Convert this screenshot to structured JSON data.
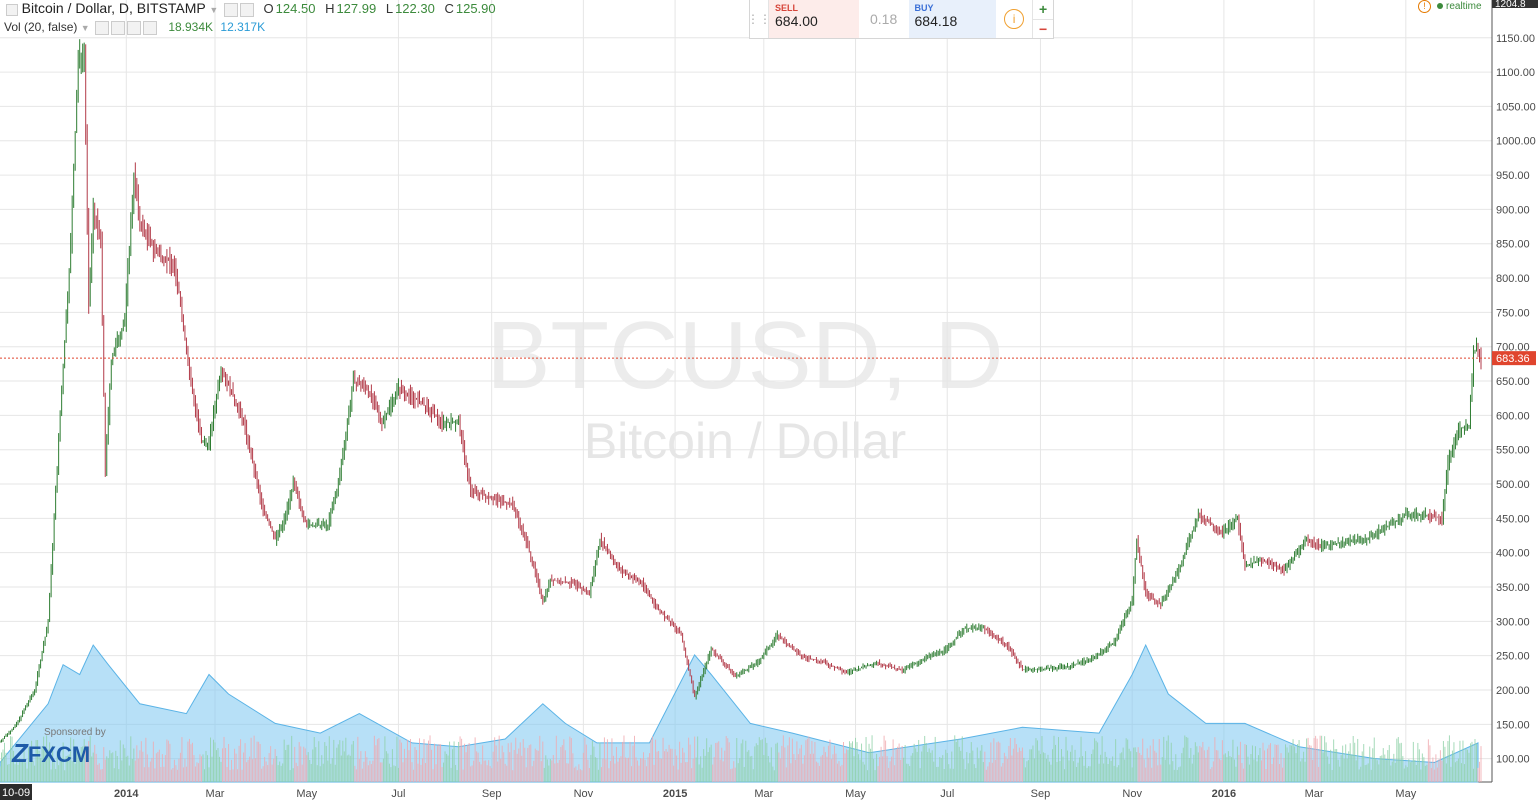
{
  "chart_data": {
    "type": "candlestick",
    "symbol_title": "Bitcoin / Dollar, D, BITSTAMP",
    "ohlc_label": {
      "O": "124.50",
      "H": "127.99",
      "L": "122.30",
      "C": "125.90"
    },
    "watermark": {
      "line1": "BTCUSD, D",
      "line2": "Bitcoin / Dollar"
    },
    "volume_indicator": {
      "label": "Vol (20, false)",
      "value1": "18.934K",
      "value2": "12.317K"
    },
    "y_axis": {
      "ticks": [
        "1150.00",
        "1100.00",
        "1050.00",
        "1000.00",
        "950.00",
        "900.00",
        "850.00",
        "800.00",
        "750.00",
        "700.00",
        "650.00",
        "600.00",
        "550.00",
        "500.00",
        "450.00",
        "400.00",
        "350.00",
        "300.00",
        "250.00",
        "200.00",
        "150.00",
        "100.00"
      ],
      "range": [
        66,
        1205
      ]
    },
    "x_axis": {
      "range": [
        "2013-10-09",
        "2016-06-20"
      ],
      "ticks": [
        {
          "date": "2014-01-01",
          "label": "2014",
          "bold": true
        },
        {
          "date": "2014-03-01",
          "label": "Mar"
        },
        {
          "date": "2014-05-01",
          "label": "May"
        },
        {
          "date": "2014-07-01",
          "label": "Jul"
        },
        {
          "date": "2014-09-01",
          "label": "Sep"
        },
        {
          "date": "2014-11-01",
          "label": "Nov"
        },
        {
          "date": "2015-01-01",
          "label": "2015",
          "bold": true
        },
        {
          "date": "2015-03-01",
          "label": "Mar"
        },
        {
          "date": "2015-05-01",
          "label": "May"
        },
        {
          "date": "2015-07-01",
          "label": "Jul"
        },
        {
          "date": "2015-09-01",
          "label": "Sep"
        },
        {
          "date": "2015-11-01",
          "label": "Nov"
        },
        {
          "date": "2016-01-01",
          "label": "2016",
          "bold": true
        },
        {
          "date": "2016-03-01",
          "label": "Mar"
        },
        {
          "date": "2016-05-01",
          "label": "May"
        }
      ],
      "start_label": "10-09"
    },
    "last_price": {
      "value": 683.36,
      "label": "683.36"
    },
    "top_price_label": "1204.8",
    "price_path": [
      [
        "2013-10-09",
        125
      ],
      [
        "2013-10-20",
        150
      ],
      [
        "2013-11-01",
        200
      ],
      [
        "2013-11-10",
        300
      ],
      [
        "2013-11-18",
        600
      ],
      [
        "2013-11-25",
        850
      ],
      [
        "2013-11-30",
        1120
      ],
      [
        "2013-12-04",
        1130
      ],
      [
        "2013-12-07",
        760
      ],
      [
        "2013-12-10",
        900
      ],
      [
        "2013-12-15",
        850
      ],
      [
        "2013-12-18",
        520
      ],
      [
        "2013-12-22",
        680
      ],
      [
        "2013-12-31",
        740
      ],
      [
        "2014-01-06",
        950
      ],
      [
        "2014-01-10",
        880
      ],
      [
        "2014-01-20",
        840
      ],
      [
        "2014-02-01",
        820
      ],
      [
        "2014-02-05",
        780
      ],
      [
        "2014-02-12",
        660
      ],
      [
        "2014-02-20",
        560
      ],
      [
        "2014-02-25",
        560
      ],
      [
        "2014-03-05",
        670
      ],
      [
        "2014-03-20",
        590
      ],
      [
        "2014-04-01",
        470
      ],
      [
        "2014-04-10",
        420
      ],
      [
        "2014-04-15",
        440
      ],
      [
        "2014-04-22",
        500
      ],
      [
        "2014-05-01",
        440
      ],
      [
        "2014-05-15",
        440
      ],
      [
        "2014-05-22",
        500
      ],
      [
        "2014-06-01",
        650
      ],
      [
        "2014-06-10",
        640
      ],
      [
        "2014-06-20",
        590
      ],
      [
        "2014-07-01",
        640
      ],
      [
        "2014-07-15",
        620
      ],
      [
        "2014-07-30",
        590
      ],
      [
        "2014-08-10",
        590
      ],
      [
        "2014-08-18",
        490
      ],
      [
        "2014-09-01",
        480
      ],
      [
        "2014-09-15",
        470
      ],
      [
        "2014-09-25",
        410
      ],
      [
        "2014-10-05",
        330
      ],
      [
        "2014-10-10",
        360
      ],
      [
        "2014-10-25",
        355
      ],
      [
        "2014-11-05",
        340
      ],
      [
        "2014-11-12",
        420
      ],
      [
        "2014-11-25",
        375
      ],
      [
        "2014-12-10",
        355
      ],
      [
        "2014-12-20",
        320
      ],
      [
        "2015-01-05",
        280
      ],
      [
        "2015-01-14",
        190
      ],
      [
        "2015-01-25",
        260
      ],
      [
        "2015-02-10",
        220
      ],
      [
        "2015-02-25",
        240
      ],
      [
        "2015-03-10",
        280
      ],
      [
        "2015-03-25",
        250
      ],
      [
        "2015-04-10",
        240
      ],
      [
        "2015-04-25",
        225
      ],
      [
        "2015-05-15",
        240
      ],
      [
        "2015-06-01",
        228
      ],
      [
        "2015-06-15",
        245
      ],
      [
        "2015-07-01",
        260
      ],
      [
        "2015-07-12",
        290
      ],
      [
        "2015-07-25",
        290
      ],
      [
        "2015-08-10",
        265
      ],
      [
        "2015-08-20",
        230
      ],
      [
        "2015-09-01",
        230
      ],
      [
        "2015-09-20",
        235
      ],
      [
        "2015-10-05",
        245
      ],
      [
        "2015-10-20",
        270
      ],
      [
        "2015-11-01",
        330
      ],
      [
        "2015-11-04",
        420
      ],
      [
        "2015-11-10",
        340
      ],
      [
        "2015-11-20",
        325
      ],
      [
        "2015-12-01",
        370
      ],
      [
        "2015-12-15",
        455
      ],
      [
        "2015-12-31",
        430
      ],
      [
        "2016-01-10",
        450
      ],
      [
        "2016-01-15",
        380
      ],
      [
        "2016-01-25",
        390
      ],
      [
        "2016-02-10",
        375
      ],
      [
        "2016-02-25",
        420
      ],
      [
        "2016-03-05",
        410
      ],
      [
        "2016-03-20",
        415
      ],
      [
        "2016-04-05",
        420
      ],
      [
        "2016-04-20",
        440
      ],
      [
        "2016-05-01",
        455
      ],
      [
        "2016-05-15",
        455
      ],
      [
        "2016-05-25",
        450
      ],
      [
        "2016-05-29",
        530
      ],
      [
        "2016-06-05",
        580
      ],
      [
        "2016-06-12",
        585
      ],
      [
        "2016-06-15",
        690
      ],
      [
        "2016-06-17",
        700
      ],
      [
        "2016-06-20",
        683
      ]
    ],
    "volume_path": [
      [
        "2013-10-09",
        10
      ],
      [
        "2013-11-10",
        40
      ],
      [
        "2013-11-20",
        60
      ],
      [
        "2013-12-01",
        55
      ],
      [
        "2013-12-10",
        70
      ],
      [
        "2013-12-20",
        60
      ],
      [
        "2014-01-10",
        40
      ],
      [
        "2014-02-10",
        35
      ],
      [
        "2014-02-25",
        55
      ],
      [
        "2014-03-10",
        45
      ],
      [
        "2014-04-10",
        30
      ],
      [
        "2014-05-10",
        25
      ],
      [
        "2014-06-05",
        35
      ],
      [
        "2014-07-10",
        20
      ],
      [
        "2014-08-10",
        18
      ],
      [
        "2014-09-10",
        22
      ],
      [
        "2014-10-05",
        40
      ],
      [
        "2014-10-20",
        30
      ],
      [
        "2014-11-10",
        20
      ],
      [
        "2014-12-15",
        20
      ],
      [
        "2015-01-14",
        65
      ],
      [
        "2015-01-25",
        55
      ],
      [
        "2015-02-20",
        30
      ],
      [
        "2015-03-20",
        25
      ],
      [
        "2015-05-10",
        15
      ],
      [
        "2015-07-10",
        22
      ],
      [
        "2015-08-20",
        28
      ],
      [
        "2015-10-10",
        25
      ],
      [
        "2015-11-01",
        55
      ],
      [
        "2015-11-10",
        70
      ],
      [
        "2015-11-25",
        45
      ],
      [
        "2015-12-20",
        30
      ],
      [
        "2016-01-15",
        30
      ],
      [
        "2016-02-20",
        18
      ],
      [
        "2016-04-10",
        12
      ],
      [
        "2016-05-20",
        10
      ],
      [
        "2016-06-18",
        20
      ]
    ],
    "volume_range": [
      0,
      400
    ],
    "colors": {
      "up": "#53b987",
      "down": "#eb4d5c",
      "volume_area": "#7cc7f0",
      "last_price": "#e0452e",
      "grid": "#e6e6e6",
      "axis_text": "#4a4a4a"
    }
  },
  "trade_panel": {
    "sell_tag": "SELL",
    "sell_price": "684.00",
    "spread": "0.18",
    "buy_tag": "BUY",
    "buy_price": "684.18",
    "plus": "+",
    "minus": "−"
  },
  "status": {
    "realtime_label": "realtime"
  },
  "sponsor": {
    "small": "Sponsored by",
    "brand": "FXCM"
  }
}
